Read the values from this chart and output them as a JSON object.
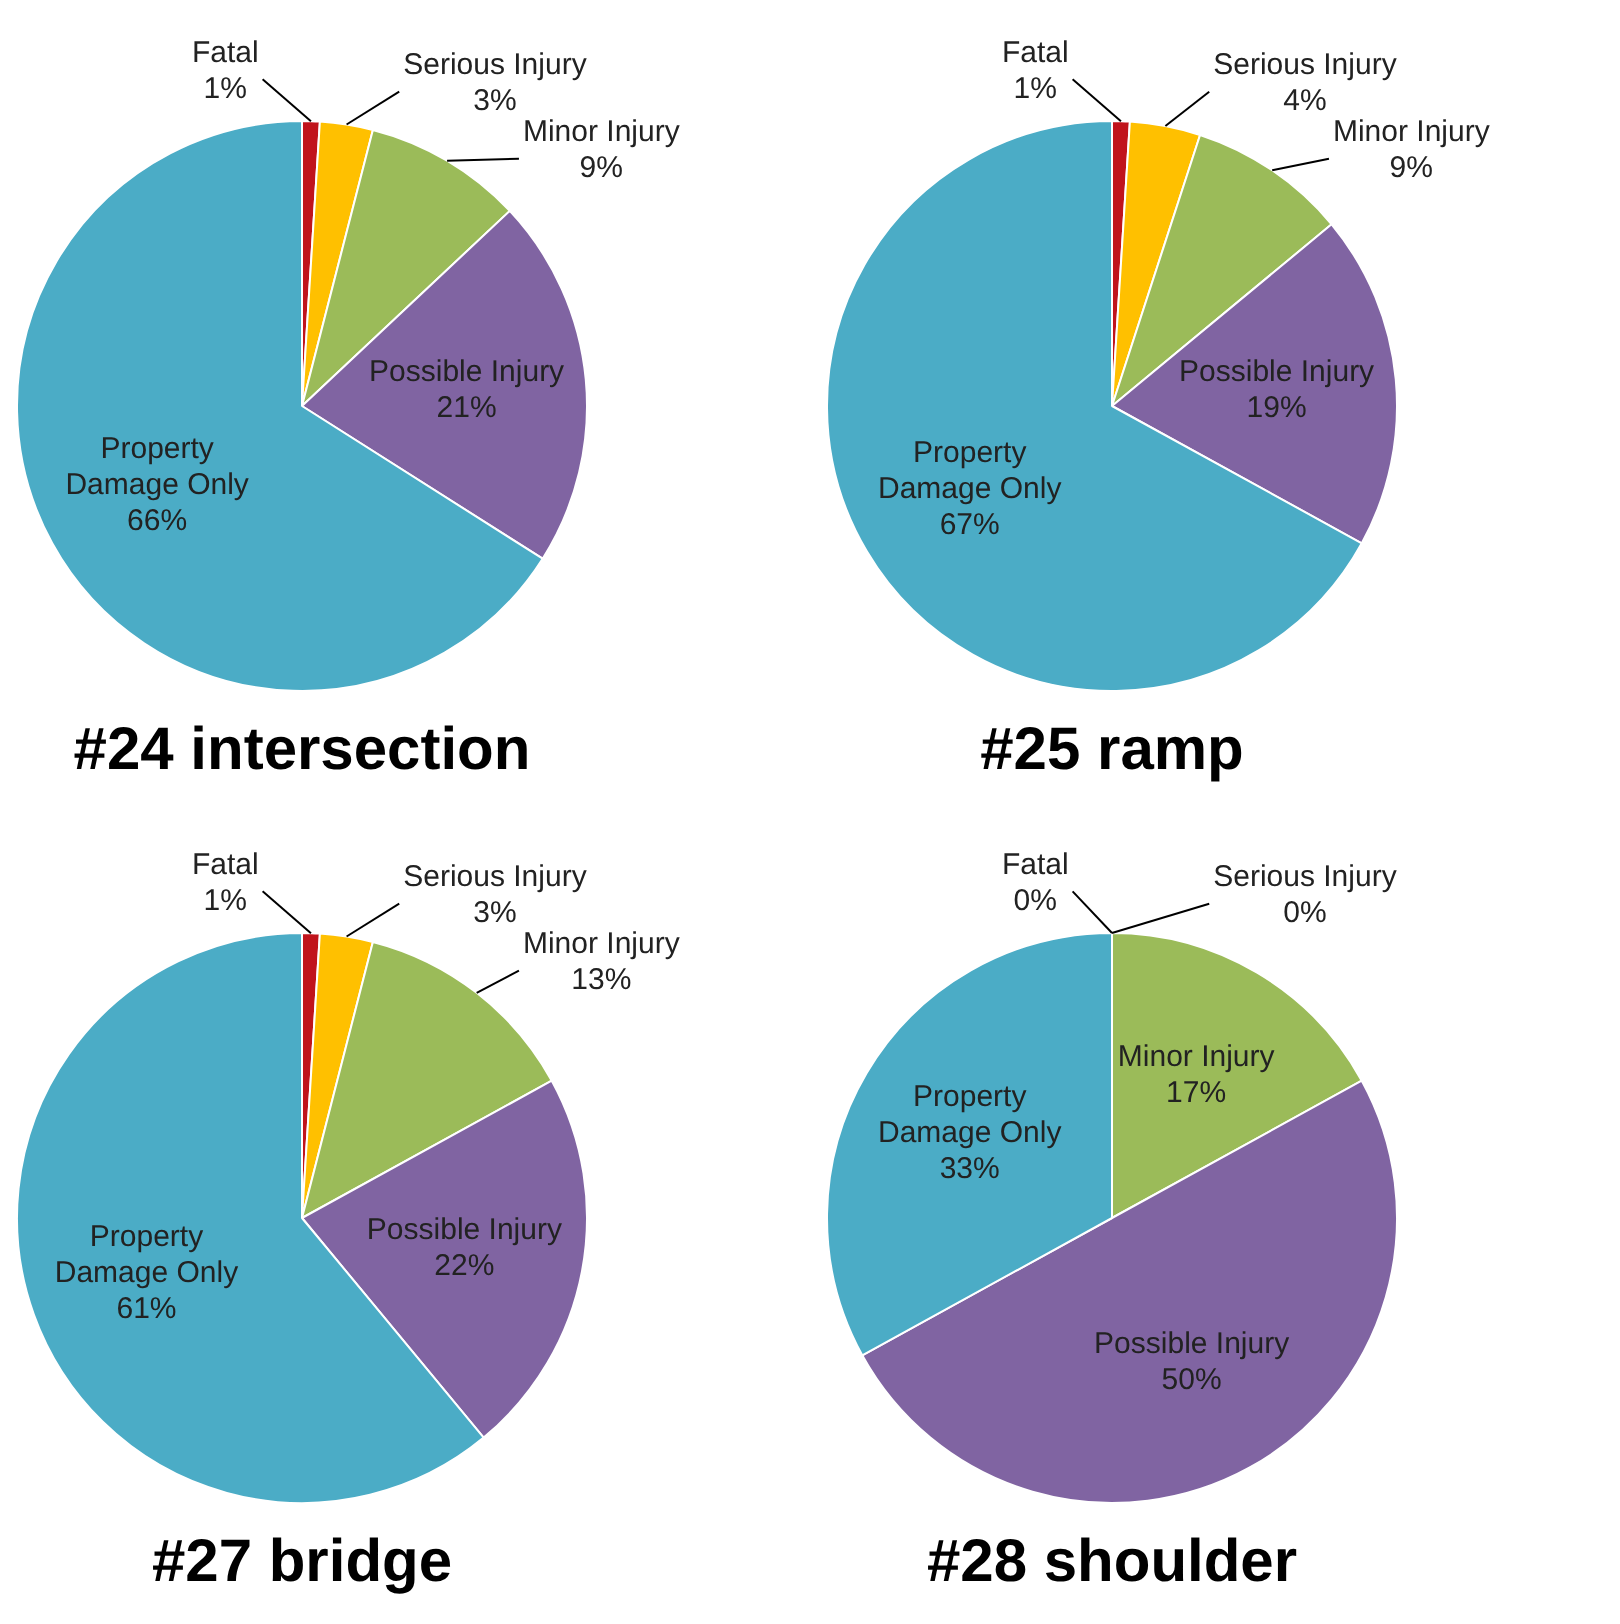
{
  "chart_data": [
    {
      "type": "pie",
      "title": "#24 intersection",
      "categories": [
        "Fatal",
        "Serious Injury",
        "Minor Injury",
        "Possible Injury",
        "Property Damage Only"
      ],
      "values": [
        1,
        3,
        9,
        21,
        66
      ],
      "value_labels": [
        "1%",
        "3%",
        "9%",
        "21%",
        "66%"
      ],
      "colors": [
        "#c0141c",
        "#ffc000",
        "#9bbb59",
        "#8064a2",
        "#4bacc6"
      ]
    },
    {
      "type": "pie",
      "title": "#25 ramp",
      "categories": [
        "Fatal",
        "Serious Injury",
        "Minor Injury",
        "Possible Injury",
        "Property Damage Only"
      ],
      "values": [
        1,
        4,
        9,
        19,
        67
      ],
      "value_labels": [
        "1%",
        "4%",
        "9%",
        "19%",
        "67%"
      ],
      "colors": [
        "#c0141c",
        "#ffc000",
        "#9bbb59",
        "#8064a2",
        "#4bacc6"
      ]
    },
    {
      "type": "pie",
      "title": "#27 bridge",
      "categories": [
        "Fatal",
        "Serious Injury",
        "Minor Injury",
        "Possible Injury",
        "Property Damage Only"
      ],
      "values": [
        1,
        3,
        13,
        22,
        61
      ],
      "value_labels": [
        "1%",
        "3%",
        "13%",
        "22%",
        "61%"
      ],
      "colors": [
        "#c0141c",
        "#ffc000",
        "#9bbb59",
        "#8064a2",
        "#4bacc6"
      ]
    },
    {
      "type": "pie",
      "title": "#28 shoulder",
      "categories": [
        "Fatal",
        "Serious Injury",
        "Minor Injury",
        "Possible Injury",
        "Property Damage Only"
      ],
      "values": [
        0,
        0,
        17,
        50,
        33
      ],
      "value_labels": [
        "0%",
        "0%",
        "17%",
        "50%",
        "33%"
      ],
      "colors": [
        "#c0141c",
        "#ffc000",
        "#9bbb59",
        "#8064a2",
        "#4bacc6"
      ]
    }
  ]
}
